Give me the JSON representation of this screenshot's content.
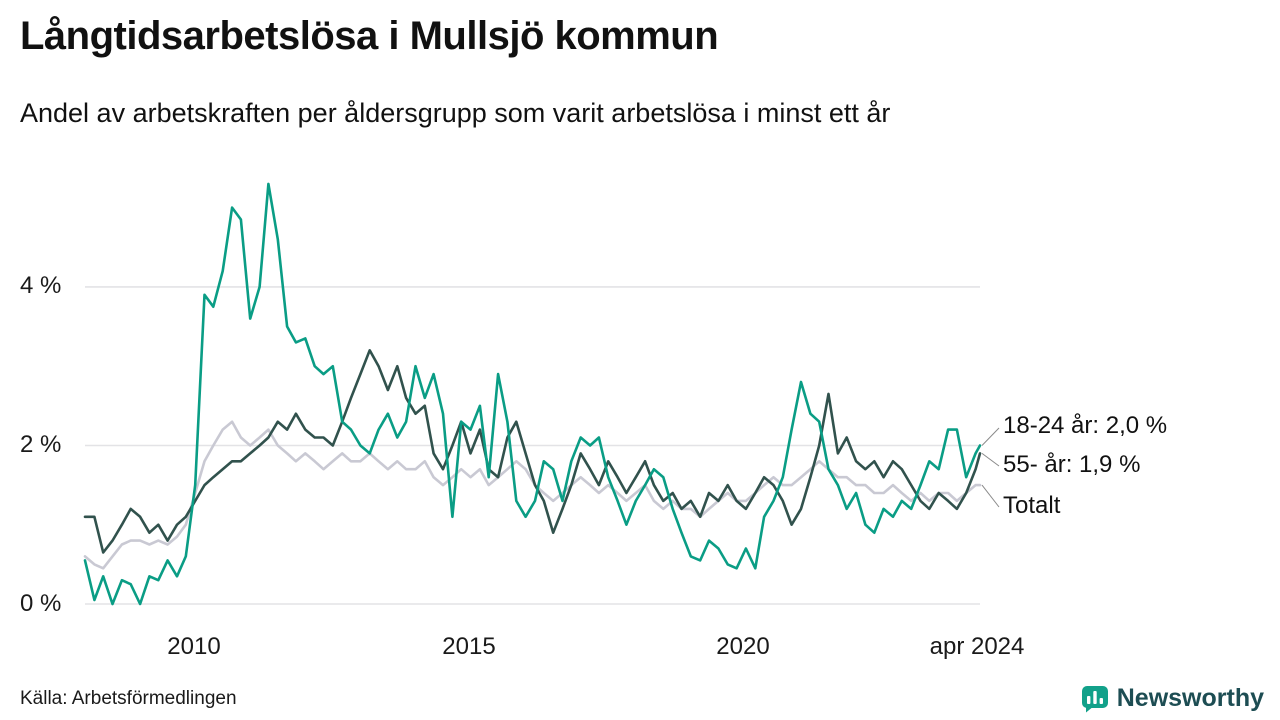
{
  "page": {
    "title": "Långtidsarbetslösa i Mullsjö kommun",
    "subtitle": "Andel av arbetskraften per åldersgrupp som varit arbetslösa i minst ett år",
    "source": "Källa: Arbetsförmedlingen",
    "brand": "Newsworthy"
  },
  "colors": {
    "teal": "#0a9d85",
    "dark_green": "#31524d",
    "gray": "#c9c9d3",
    "grid": "#e3e3e6",
    "connector": "#8a8a8a",
    "text": "#1a1a1a",
    "brand_icon": "#12a18a",
    "brand_text": "#1d4d53"
  },
  "chart_data": {
    "type": "line",
    "title": "Långtidsarbetslösa i Mullsjö kommun",
    "subtitle": "Andel av arbetskraften per åldersgrupp som varit arbetslösa i minst ett år",
    "unit": "%",
    "grid": "horizontal",
    "legend_position": "right-end-labels",
    "x_axis": {
      "range": [
        2008,
        2024.25
      ],
      "ticks": [
        2010,
        2015,
        2020,
        2024.25
      ],
      "labels": [
        "2010",
        "2015",
        "2020",
        "apr 2024"
      ]
    },
    "y_axis": {
      "range": [
        0,
        5.5
      ],
      "ticks": [
        0,
        2,
        4
      ],
      "labels": [
        "0 %",
        "2 %",
        "4 %"
      ]
    },
    "x": [
      2008,
      2008.17,
      2008.33,
      2008.5,
      2008.67,
      2008.83,
      2009,
      2009.17,
      2009.33,
      2009.5,
      2009.67,
      2009.83,
      2010,
      2010.17,
      2010.33,
      2010.5,
      2010.67,
      2010.83,
      2011,
      2011.17,
      2011.33,
      2011.5,
      2011.67,
      2011.83,
      2012,
      2012.17,
      2012.33,
      2012.5,
      2012.67,
      2012.83,
      2013,
      2013.17,
      2013.33,
      2013.5,
      2013.67,
      2013.83,
      2014,
      2014.17,
      2014.33,
      2014.5,
      2014.67,
      2014.83,
      2015,
      2015.17,
      2015.33,
      2015.5,
      2015.67,
      2015.83,
      2016,
      2016.17,
      2016.33,
      2016.5,
      2016.67,
      2016.83,
      2017,
      2017.17,
      2017.33,
      2017.5,
      2017.67,
      2017.83,
      2018,
      2018.17,
      2018.33,
      2018.5,
      2018.67,
      2018.83,
      2019,
      2019.17,
      2019.33,
      2019.5,
      2019.67,
      2019.83,
      2020,
      2020.17,
      2020.33,
      2020.5,
      2020.67,
      2020.83,
      2021,
      2021.17,
      2021.33,
      2021.5,
      2021.67,
      2021.83,
      2022,
      2022.17,
      2022.33,
      2022.5,
      2022.67,
      2022.83,
      2023,
      2023.17,
      2023.33,
      2023.5,
      2023.67,
      2023.83,
      2024,
      2024.17,
      2024.25
    ],
    "series": [
      {
        "name": "18-24 år",
        "end_label": "18-24 år: 2,0 %",
        "end_value": "2,0 %",
        "color": "#0a9d85",
        "values": [
          0.55,
          0.05,
          0.35,
          0.0,
          0.3,
          0.25,
          0.0,
          0.35,
          0.3,
          0.55,
          0.35,
          0.6,
          1.5,
          3.9,
          3.75,
          4.2,
          5.0,
          4.85,
          3.6,
          4.0,
          5.3,
          4.6,
          3.5,
          3.3,
          3.35,
          3.0,
          2.9,
          3.0,
          2.3,
          2.2,
          2.0,
          1.9,
          2.2,
          2.4,
          2.1,
          2.3,
          3.0,
          2.6,
          2.9,
          2.4,
          1.1,
          2.3,
          2.2,
          2.5,
          1.6,
          2.9,
          2.3,
          1.3,
          1.1,
          1.3,
          1.8,
          1.7,
          1.3,
          1.8,
          2.1,
          2.0,
          2.1,
          1.6,
          1.3,
          1.0,
          1.3,
          1.5,
          1.7,
          1.6,
          1.2,
          0.9,
          0.6,
          0.55,
          0.8,
          0.7,
          0.5,
          0.45,
          0.7,
          0.45,
          1.1,
          1.3,
          1.6,
          2.2,
          2.8,
          2.4,
          2.3,
          1.7,
          1.5,
          1.2,
          1.4,
          1.0,
          0.9,
          1.2,
          1.1,
          1.3,
          1.2,
          1.5,
          1.8,
          1.7,
          2.2,
          2.2,
          1.6,
          1.9,
          2.0
        ]
      },
      {
        "name": "55- år",
        "end_label": "55- år: 1,9 %",
        "end_value": "1,9 %",
        "color": "#31524d",
        "values": [
          1.1,
          1.1,
          0.65,
          0.8,
          1.0,
          1.2,
          1.1,
          0.9,
          1.0,
          0.8,
          1.0,
          1.1,
          1.3,
          1.5,
          1.6,
          1.7,
          1.8,
          1.8,
          1.9,
          2.0,
          2.1,
          2.3,
          2.2,
          2.4,
          2.2,
          2.1,
          2.1,
          2.0,
          2.3,
          2.6,
          2.9,
          3.2,
          3.0,
          2.7,
          3.0,
          2.6,
          2.4,
          2.5,
          1.9,
          1.7,
          2.0,
          2.3,
          1.9,
          2.2,
          1.7,
          1.6,
          2.1,
          2.3,
          1.9,
          1.5,
          1.3,
          0.9,
          1.2,
          1.5,
          1.9,
          1.7,
          1.5,
          1.8,
          1.6,
          1.4,
          1.6,
          1.8,
          1.5,
          1.3,
          1.4,
          1.2,
          1.3,
          1.1,
          1.4,
          1.3,
          1.5,
          1.3,
          1.2,
          1.4,
          1.6,
          1.5,
          1.3,
          1.0,
          1.2,
          1.6,
          2.0,
          2.65,
          1.9,
          2.1,
          1.8,
          1.7,
          1.8,
          1.6,
          1.8,
          1.7,
          1.5,
          1.3,
          1.2,
          1.4,
          1.3,
          1.2,
          1.4,
          1.7,
          1.9
        ]
      },
      {
        "name": "Totalt",
        "end_label": "Totalt",
        "end_value": "",
        "color": "#c9c9d3",
        "values": [
          0.6,
          0.5,
          0.45,
          0.6,
          0.75,
          0.8,
          0.8,
          0.75,
          0.8,
          0.75,
          0.85,
          1.0,
          1.4,
          1.8,
          2.0,
          2.2,
          2.3,
          2.1,
          2.0,
          2.1,
          2.2,
          2.0,
          1.9,
          1.8,
          1.9,
          1.8,
          1.7,
          1.8,
          1.9,
          1.8,
          1.8,
          1.9,
          1.8,
          1.7,
          1.8,
          1.7,
          1.7,
          1.8,
          1.6,
          1.5,
          1.6,
          1.7,
          1.6,
          1.7,
          1.5,
          1.6,
          1.7,
          1.8,
          1.7,
          1.5,
          1.4,
          1.3,
          1.4,
          1.5,
          1.6,
          1.5,
          1.4,
          1.5,
          1.4,
          1.3,
          1.4,
          1.5,
          1.3,
          1.2,
          1.3,
          1.2,
          1.2,
          1.1,
          1.2,
          1.3,
          1.4,
          1.3,
          1.3,
          1.4,
          1.5,
          1.6,
          1.5,
          1.5,
          1.6,
          1.7,
          1.8,
          1.7,
          1.6,
          1.6,
          1.5,
          1.5,
          1.4,
          1.4,
          1.5,
          1.4,
          1.3,
          1.4,
          1.3,
          1.4,
          1.4,
          1.3,
          1.4,
          1.5,
          1.5
        ]
      }
    ]
  }
}
